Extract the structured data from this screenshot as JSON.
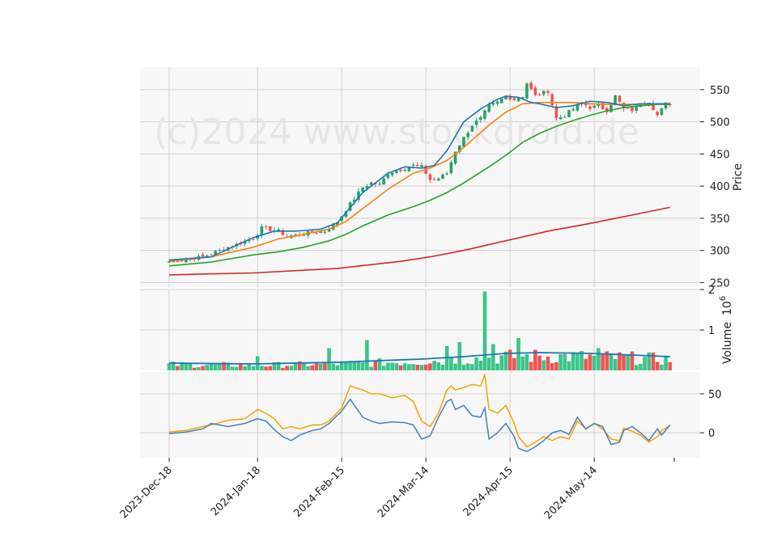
{
  "watermark": "(c)2024 www.stockdroid.de",
  "colors": {
    "panel_bg": "#f7f7f7",
    "grid": "#d0d0d0",
    "up": "#26a269",
    "up_vol": "#3cc48a",
    "down": "#f05454",
    "ma_short": "#1f77b4",
    "ma_mid": "#ff7f0e",
    "ma_long": "#2ca02c",
    "ma_200": "#d62728",
    "vol_ma": "#1f77b4",
    "osc_fast": "#4682b4",
    "osc_slow": "#f5a300"
  },
  "chart_data": [
    {
      "type": "candlestick",
      "panel": "price",
      "ylabel": "Price",
      "yticks": [
        250,
        300,
        350,
        400,
        450,
        500,
        550
      ],
      "ylim": [
        243,
        585
      ],
      "x_ticks": [
        "2023-Dec-18",
        "2024-Jan-18",
        "2024-Feb-15",
        "2024-Mar-14",
        "2024-Apr-15",
        "2024-May-14"
      ],
      "x_tick_index": [
        0,
        21,
        41,
        61,
        81,
        101
      ],
      "n_bars": 120,
      "close_anchors": [
        [
          0,
          283
        ],
        [
          8,
          290
        ],
        [
          14,
          305
        ],
        [
          20,
          318
        ],
        [
          22,
          335
        ],
        [
          26,
          330
        ],
        [
          28,
          322
        ],
        [
          34,
          328
        ],
        [
          37,
          330
        ],
        [
          40,
          345
        ],
        [
          43,
          372
        ],
        [
          46,
          398
        ],
        [
          48,
          405
        ],
        [
          50,
          402
        ],
        [
          52,
          420
        ],
        [
          56,
          428
        ],
        [
          58,
          432
        ],
        [
          60,
          430
        ],
        [
          62,
          410
        ],
        [
          64,
          412
        ],
        [
          66,
          420
        ],
        [
          68,
          455
        ],
        [
          72,
          495
        ],
        [
          74,
          505
        ],
        [
          76,
          525
        ],
        [
          78,
          530
        ],
        [
          80,
          540
        ],
        [
          82,
          535
        ],
        [
          84,
          540
        ],
        [
          85,
          560
        ],
        [
          87,
          540
        ],
        [
          90,
          548
        ],
        [
          92,
          505
        ],
        [
          94,
          510
        ],
        [
          96,
          520
        ],
        [
          98,
          530
        ],
        [
          100,
          522
        ],
        [
          102,
          525
        ],
        [
          104,
          518
        ],
        [
          106,
          540
        ],
        [
          108,
          520
        ],
        [
          110,
          518
        ],
        [
          112,
          528
        ],
        [
          114,
          532
        ],
        [
          116,
          510
        ],
        [
          118,
          528
        ],
        [
          119,
          528
        ]
      ],
      "ma_short": [
        [
          0,
          285
        ],
        [
          10,
          290
        ],
        [
          20,
          320
        ],
        [
          25,
          330
        ],
        [
          30,
          330
        ],
        [
          36,
          333
        ],
        [
          40,
          343
        ],
        [
          46,
          390
        ],
        [
          52,
          420
        ],
        [
          56,
          430
        ],
        [
          60,
          428
        ],
        [
          63,
          432
        ],
        [
          66,
          455
        ],
        [
          70,
          500
        ],
        [
          74,
          520
        ],
        [
          78,
          535
        ],
        [
          80,
          540
        ],
        [
          83,
          538
        ],
        [
          86,
          530
        ],
        [
          88,
          528
        ],
        [
          92,
          522
        ],
        [
          96,
          525
        ],
        [
          100,
          532
        ],
        [
          104,
          530
        ],
        [
          108,
          525
        ],
        [
          112,
          528
        ],
        [
          116,
          528
        ],
        [
          119,
          528
        ]
      ],
      "ma_mid": [
        [
          0,
          283
        ],
        [
          10,
          290
        ],
        [
          20,
          305
        ],
        [
          26,
          318
        ],
        [
          32,
          325
        ],
        [
          38,
          333
        ],
        [
          42,
          345
        ],
        [
          46,
          365
        ],
        [
          52,
          395
        ],
        [
          58,
          420
        ],
        [
          62,
          428
        ],
        [
          66,
          440
        ],
        [
          70,
          460
        ],
        [
          76,
          495
        ],
        [
          80,
          515
        ],
        [
          84,
          528
        ],
        [
          88,
          530
        ],
        [
          92,
          530
        ],
        [
          96,
          530
        ],
        [
          100,
          528
        ],
        [
          104,
          527
        ],
        [
          108,
          527
        ],
        [
          112,
          527
        ],
        [
          116,
          528
        ],
        [
          119,
          528
        ]
      ],
      "ma_long": [
        [
          0,
          276
        ],
        [
          10,
          282
        ],
        [
          20,
          293
        ],
        [
          26,
          298
        ],
        [
          32,
          305
        ],
        [
          38,
          315
        ],
        [
          42,
          325
        ],
        [
          46,
          338
        ],
        [
          52,
          355
        ],
        [
          58,
          368
        ],
        [
          62,
          378
        ],
        [
          66,
          390
        ],
        [
          70,
          405
        ],
        [
          76,
          430
        ],
        [
          80,
          448
        ],
        [
          84,
          468
        ],
        [
          88,
          482
        ],
        [
          92,
          493
        ],
        [
          96,
          502
        ],
        [
          100,
          510
        ],
        [
          104,
          517
        ],
        [
          108,
          522
        ],
        [
          112,
          525
        ],
        [
          116,
          527
        ],
        [
          119,
          527
        ]
      ],
      "ma_200": [
        [
          0,
          262
        ],
        [
          20,
          265
        ],
        [
          40,
          272
        ],
        [
          55,
          283
        ],
        [
          62,
          290
        ],
        [
          70,
          300
        ],
        [
          80,
          315
        ],
        [
          90,
          330
        ],
        [
          100,
          342
        ],
        [
          110,
          355
        ],
        [
          119,
          367
        ]
      ],
      "line_labels": {
        "ma_short": "",
        "ma_mid": "",
        "ma_long": "",
        "ma_200": ""
      }
    },
    {
      "type": "bar",
      "panel": "volume",
      "ylabel": "Volume  10^6",
      "ylabel_main": "Volume",
      "ylabel_exp": "6",
      "ylabel_base": "10",
      "yticks": [
        1,
        2
      ],
      "ylim": [
        0,
        2
      ],
      "spike_bars": [
        [
          75,
          1.95
        ],
        [
          77,
          0.65
        ],
        [
          83,
          0.8
        ],
        [
          69,
          0.7
        ],
        [
          47,
          0.75
        ],
        [
          66,
          0.6
        ],
        [
          38,
          0.55
        ],
        [
          21,
          0.35
        ],
        [
          102,
          0.55
        ]
      ],
      "volume_ma": [
        [
          0,
          0.18
        ],
        [
          20,
          0.16
        ],
        [
          40,
          0.2
        ],
        [
          60,
          0.28
        ],
        [
          70,
          0.34
        ],
        [
          80,
          0.42
        ],
        [
          88,
          0.44
        ],
        [
          100,
          0.42
        ],
        [
          110,
          0.38
        ],
        [
          119,
          0.34
        ]
      ]
    },
    {
      "type": "line",
      "panel": "oscillator",
      "yticks": [
        0,
        50
      ],
      "ylim": [
        -32,
        78
      ],
      "fast": [
        [
          0,
          -1
        ],
        [
          4,
          1
        ],
        [
          8,
          5
        ],
        [
          10,
          12
        ],
        [
          14,
          8
        ],
        [
          18,
          12
        ],
        [
          21,
          18
        ],
        [
          23,
          15
        ],
        [
          25,
          4
        ],
        [
          27,
          -5
        ],
        [
          29,
          -10
        ],
        [
          31,
          -3
        ],
        [
          34,
          3
        ],
        [
          36,
          5
        ],
        [
          38,
          12
        ],
        [
          41,
          28
        ],
        [
          43,
          43
        ],
        [
          46,
          20
        ],
        [
          48,
          15
        ],
        [
          50,
          12
        ],
        [
          53,
          14
        ],
        [
          56,
          13
        ],
        [
          58,
          10
        ],
        [
          60,
          -8
        ],
        [
          62,
          -4
        ],
        [
          64,
          20
        ],
        [
          66,
          40
        ],
        [
          67,
          43
        ],
        [
          68,
          30
        ],
        [
          70,
          35
        ],
        [
          72,
          22
        ],
        [
          74,
          20
        ],
        [
          75,
          32
        ],
        [
          76,
          -8
        ],
        [
          78,
          0
        ],
        [
          80,
          12
        ],
        [
          82,
          -5
        ],
        [
          83,
          -20
        ],
        [
          85,
          -24
        ],
        [
          87,
          -18
        ],
        [
          89,
          -10
        ],
        [
          91,
          0
        ],
        [
          93,
          3
        ],
        [
          95,
          -2
        ],
        [
          97,
          20
        ],
        [
          99,
          5
        ],
        [
          101,
          12
        ],
        [
          103,
          8
        ],
        [
          105,
          -15
        ],
        [
          107,
          -12
        ],
        [
          108,
          3
        ],
        [
          110,
          8
        ],
        [
          112,
          0
        ],
        [
          114,
          -10
        ],
        [
          116,
          5
        ],
        [
          117,
          -3
        ],
        [
          119,
          10
        ]
      ],
      "slow": [
        [
          0,
          1
        ],
        [
          4,
          3
        ],
        [
          8,
          8
        ],
        [
          10,
          10
        ],
        [
          14,
          16
        ],
        [
          18,
          18
        ],
        [
          21,
          30
        ],
        [
          23,
          25
        ],
        [
          25,
          18
        ],
        [
          27,
          5
        ],
        [
          29,
          8
        ],
        [
          31,
          5
        ],
        [
          34,
          10
        ],
        [
          36,
          10
        ],
        [
          38,
          15
        ],
        [
          41,
          32
        ],
        [
          43,
          60
        ],
        [
          46,
          55
        ],
        [
          48,
          50
        ],
        [
          50,
          50
        ],
        [
          53,
          45
        ],
        [
          56,
          48
        ],
        [
          58,
          40
        ],
        [
          60,
          15
        ],
        [
          62,
          8
        ],
        [
          64,
          25
        ],
        [
          66,
          55
        ],
        [
          67,
          60
        ],
        [
          68,
          55
        ],
        [
          70,
          58
        ],
        [
          72,
          62
        ],
        [
          74,
          60
        ],
        [
          75,
          75
        ],
        [
          76,
          30
        ],
        [
          78,
          25
        ],
        [
          80,
          35
        ],
        [
          82,
          12
        ],
        [
          83,
          -5
        ],
        [
          85,
          -18
        ],
        [
          87,
          -12
        ],
        [
          89,
          -5
        ],
        [
          91,
          -10
        ],
        [
          93,
          -5
        ],
        [
          95,
          -8
        ],
        [
          97,
          15
        ],
        [
          99,
          5
        ],
        [
          101,
          12
        ],
        [
          103,
          5
        ],
        [
          105,
          -8
        ],
        [
          107,
          -10
        ],
        [
          108,
          6
        ],
        [
          110,
          2
        ],
        [
          112,
          -3
        ],
        [
          114,
          -12
        ],
        [
          116,
          -5
        ],
        [
          117,
          3
        ],
        [
          119,
          9
        ]
      ]
    }
  ]
}
